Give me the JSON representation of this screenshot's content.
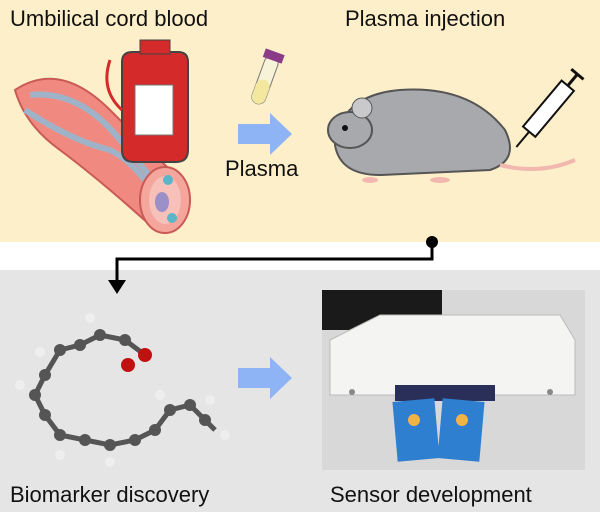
{
  "labels": {
    "umbilical": "Umbilical cord blood",
    "injection": "Plasma injection",
    "plasma": "Plasma",
    "biomarker": "Biomarker discovery",
    "sensor": "Sensor development"
  },
  "colors": {
    "top_background": "#fdefc9",
    "bottom_background": "#e5e5e5",
    "arrow": "#8fb4f5",
    "connector": "#000000"
  }
}
